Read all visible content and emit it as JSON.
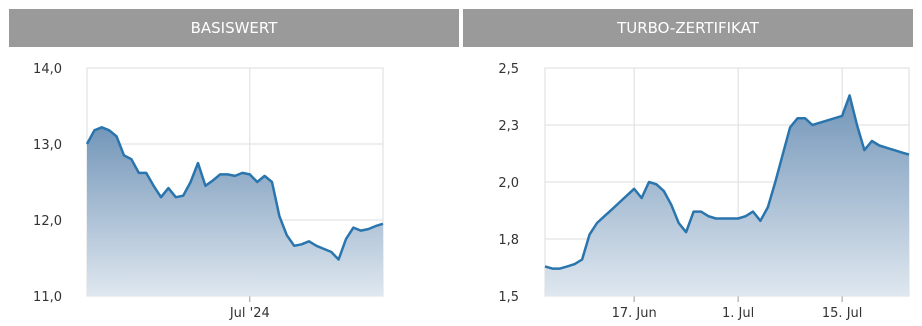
{
  "headers": {
    "left": "BASISWERT",
    "right": "TURBO-ZERTIFIKAT"
  },
  "colors": {
    "line": "#2a75ad",
    "fill_top": "#7396b9",
    "fill_bottom": "#dfe7ef",
    "grid": "#dddddd",
    "header_bg": "#9a9a9a"
  },
  "chart_data": [
    {
      "type": "area",
      "title": "BASISWERT",
      "xlabel": "",
      "ylabel": "",
      "ylim": [
        11.0,
        14.0
      ],
      "yticks": [
        "14,0",
        "13,0",
        "12,0",
        "11,0"
      ],
      "ytick_values": [
        14.0,
        13.0,
        12.0,
        11.0
      ],
      "xlim": [
        0,
        40
      ],
      "xticks": [
        {
          "value": 22,
          "label": "Jul '24"
        }
      ],
      "grid": true,
      "x": [
        0,
        1,
        2,
        3,
        4,
        5,
        6,
        7,
        8,
        9,
        10,
        11,
        12,
        13,
        14,
        15,
        16,
        17,
        18,
        19,
        20,
        21,
        22,
        23,
        24,
        25,
        26,
        27,
        28,
        29,
        30,
        31,
        32,
        33,
        34,
        35,
        36,
        37,
        38,
        39,
        40
      ],
      "values": [
        13.0,
        13.18,
        13.22,
        13.18,
        13.1,
        12.85,
        12.8,
        12.62,
        12.62,
        12.45,
        12.3,
        12.42,
        12.3,
        12.32,
        12.5,
        12.75,
        12.45,
        12.52,
        12.6,
        12.6,
        12.58,
        12.62,
        12.6,
        12.5,
        12.58,
        12.5,
        12.05,
        11.8,
        11.66,
        11.68,
        11.72,
        11.66,
        11.62,
        11.58,
        11.48,
        11.75,
        11.9,
        11.86,
        11.88,
        11.92,
        11.95
      ]
    },
    {
      "type": "area",
      "title": "TURBO-ZERTIFIKAT",
      "xlabel": "",
      "ylabel": "",
      "ylim": [
        1.5,
        2.5
      ],
      "yticks": [
        "2,5",
        "2,3",
        "2,0",
        "1,8",
        "1,5"
      ],
      "ytick_values": [
        2.5,
        2.25,
        2.0,
        1.75,
        1.5
      ],
      "xlim": [
        0,
        49
      ],
      "xticks": [
        {
          "value": 12,
          "label": "17. Jun"
        },
        {
          "value": 26,
          "label": "1. Jul"
        },
        {
          "value": 40,
          "label": "15. Jul"
        }
      ],
      "grid": true,
      "x": [
        0,
        1,
        2,
        3,
        4,
        5,
        6,
        7,
        8,
        9,
        10,
        11,
        12,
        13,
        14,
        15,
        16,
        17,
        18,
        19,
        20,
        21,
        22,
        23,
        24,
        25,
        26,
        27,
        28,
        29,
        30,
        31,
        32,
        33,
        34,
        35,
        36,
        37,
        38,
        39,
        40,
        41,
        42,
        43,
        44,
        45,
        46,
        47,
        48,
        49
      ],
      "values": [
        1.63,
        1.62,
        1.62,
        1.63,
        1.64,
        1.66,
        1.77,
        1.82,
        1.85,
        1.88,
        1.91,
        1.94,
        1.97,
        1.93,
        2.0,
        1.99,
        1.96,
        1.9,
        1.82,
        1.78,
        1.87,
        1.87,
        1.85,
        1.84,
        1.84,
        1.84,
        1.84,
        1.85,
        1.87,
        1.83,
        1.89,
        2.0,
        2.12,
        2.24,
        2.28,
        2.28,
        2.25,
        2.26,
        2.27,
        2.28,
        2.29,
        2.38,
        2.25,
        2.14,
        2.18,
        2.16,
        2.15,
        2.14,
        2.13,
        2.12
      ]
    }
  ]
}
